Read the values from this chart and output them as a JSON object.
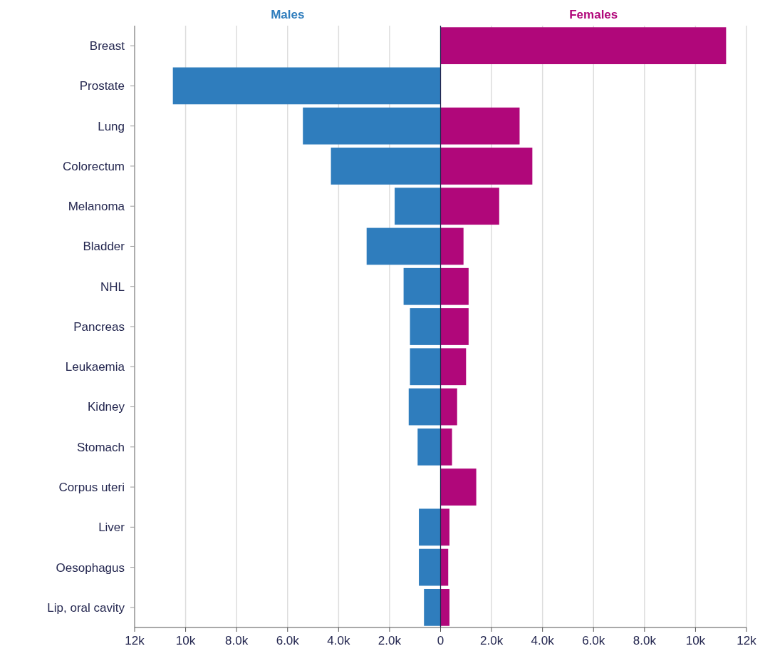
{
  "chart_data": {
    "type": "bar",
    "orientation": "horizontal",
    "grid": "x",
    "stacked": true,
    "categories": [
      "Breast",
      "Prostate",
      "Lung",
      "Colorectum",
      "Melanoma",
      "Bladder",
      "NHL",
      "Pancreas",
      "Leukaemia",
      "Kidney",
      "Stomach",
      "Corpus uteri",
      "Liver",
      "Oesophagus",
      "Lip, oral cavity"
    ],
    "series": [
      {
        "name": "Males",
        "color": "#2f7dbd",
        "values": [
          null,
          -10500,
          -5400,
          -4300,
          -1800,
          -2900,
          -1450,
          -1200,
          -1200,
          -1250,
          -900,
          null,
          -850,
          -850,
          -650
        ]
      },
      {
        "name": "Females",
        "color": "#b0077a",
        "values": [
          11200,
          null,
          3100,
          3600,
          2300,
          900,
          1100,
          1100,
          1000,
          650,
          450,
          1400,
          350,
          300,
          350
        ]
      }
    ],
    "xlim": [
      -12000,
      12000
    ],
    "xticks": [
      {
        "value": -12000,
        "label": "12k"
      },
      {
        "value": -10000,
        "label": "10k"
      },
      {
        "value": -8000,
        "label": "8.0k"
      },
      {
        "value": -6000,
        "label": "6.0k"
      },
      {
        "value": -4000,
        "label": "4.0k"
      },
      {
        "value": -2000,
        "label": "2.0k"
      },
      0,
      {
        "value": 2000,
        "label": "2.0k"
      },
      {
        "value": 4000,
        "label": "4.0k"
      },
      {
        "value": 6000,
        "label": "6.0k"
      },
      {
        "value": 8000,
        "label": "8.0k"
      },
      {
        "value": 10000,
        "label": "10k"
      },
      {
        "value": 12000,
        "label": "12k"
      }
    ]
  }
}
